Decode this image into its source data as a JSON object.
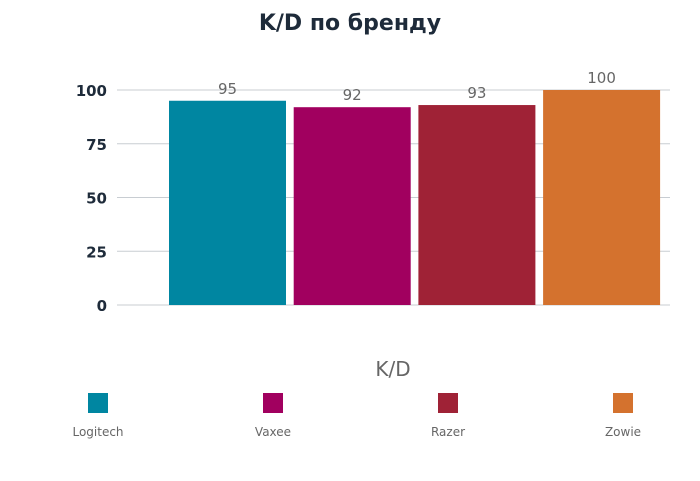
{
  "chart_data": {
    "type": "bar",
    "title": "K/D по бренду",
    "xlabel": "K/D",
    "ylabel": "",
    "categories": [
      "Logitech",
      "Vaxee",
      "Razer",
      "Zowie"
    ],
    "values": [
      95,
      92,
      93,
      100
    ],
    "colors": [
      "#0086a1",
      "#a1005f",
      "#9f2236",
      "#d4722e"
    ],
    "ylim": [
      0,
      100
    ],
    "yticks": [
      0,
      25,
      50,
      75,
      100
    ],
    "grid": true,
    "legend": "bottom"
  }
}
